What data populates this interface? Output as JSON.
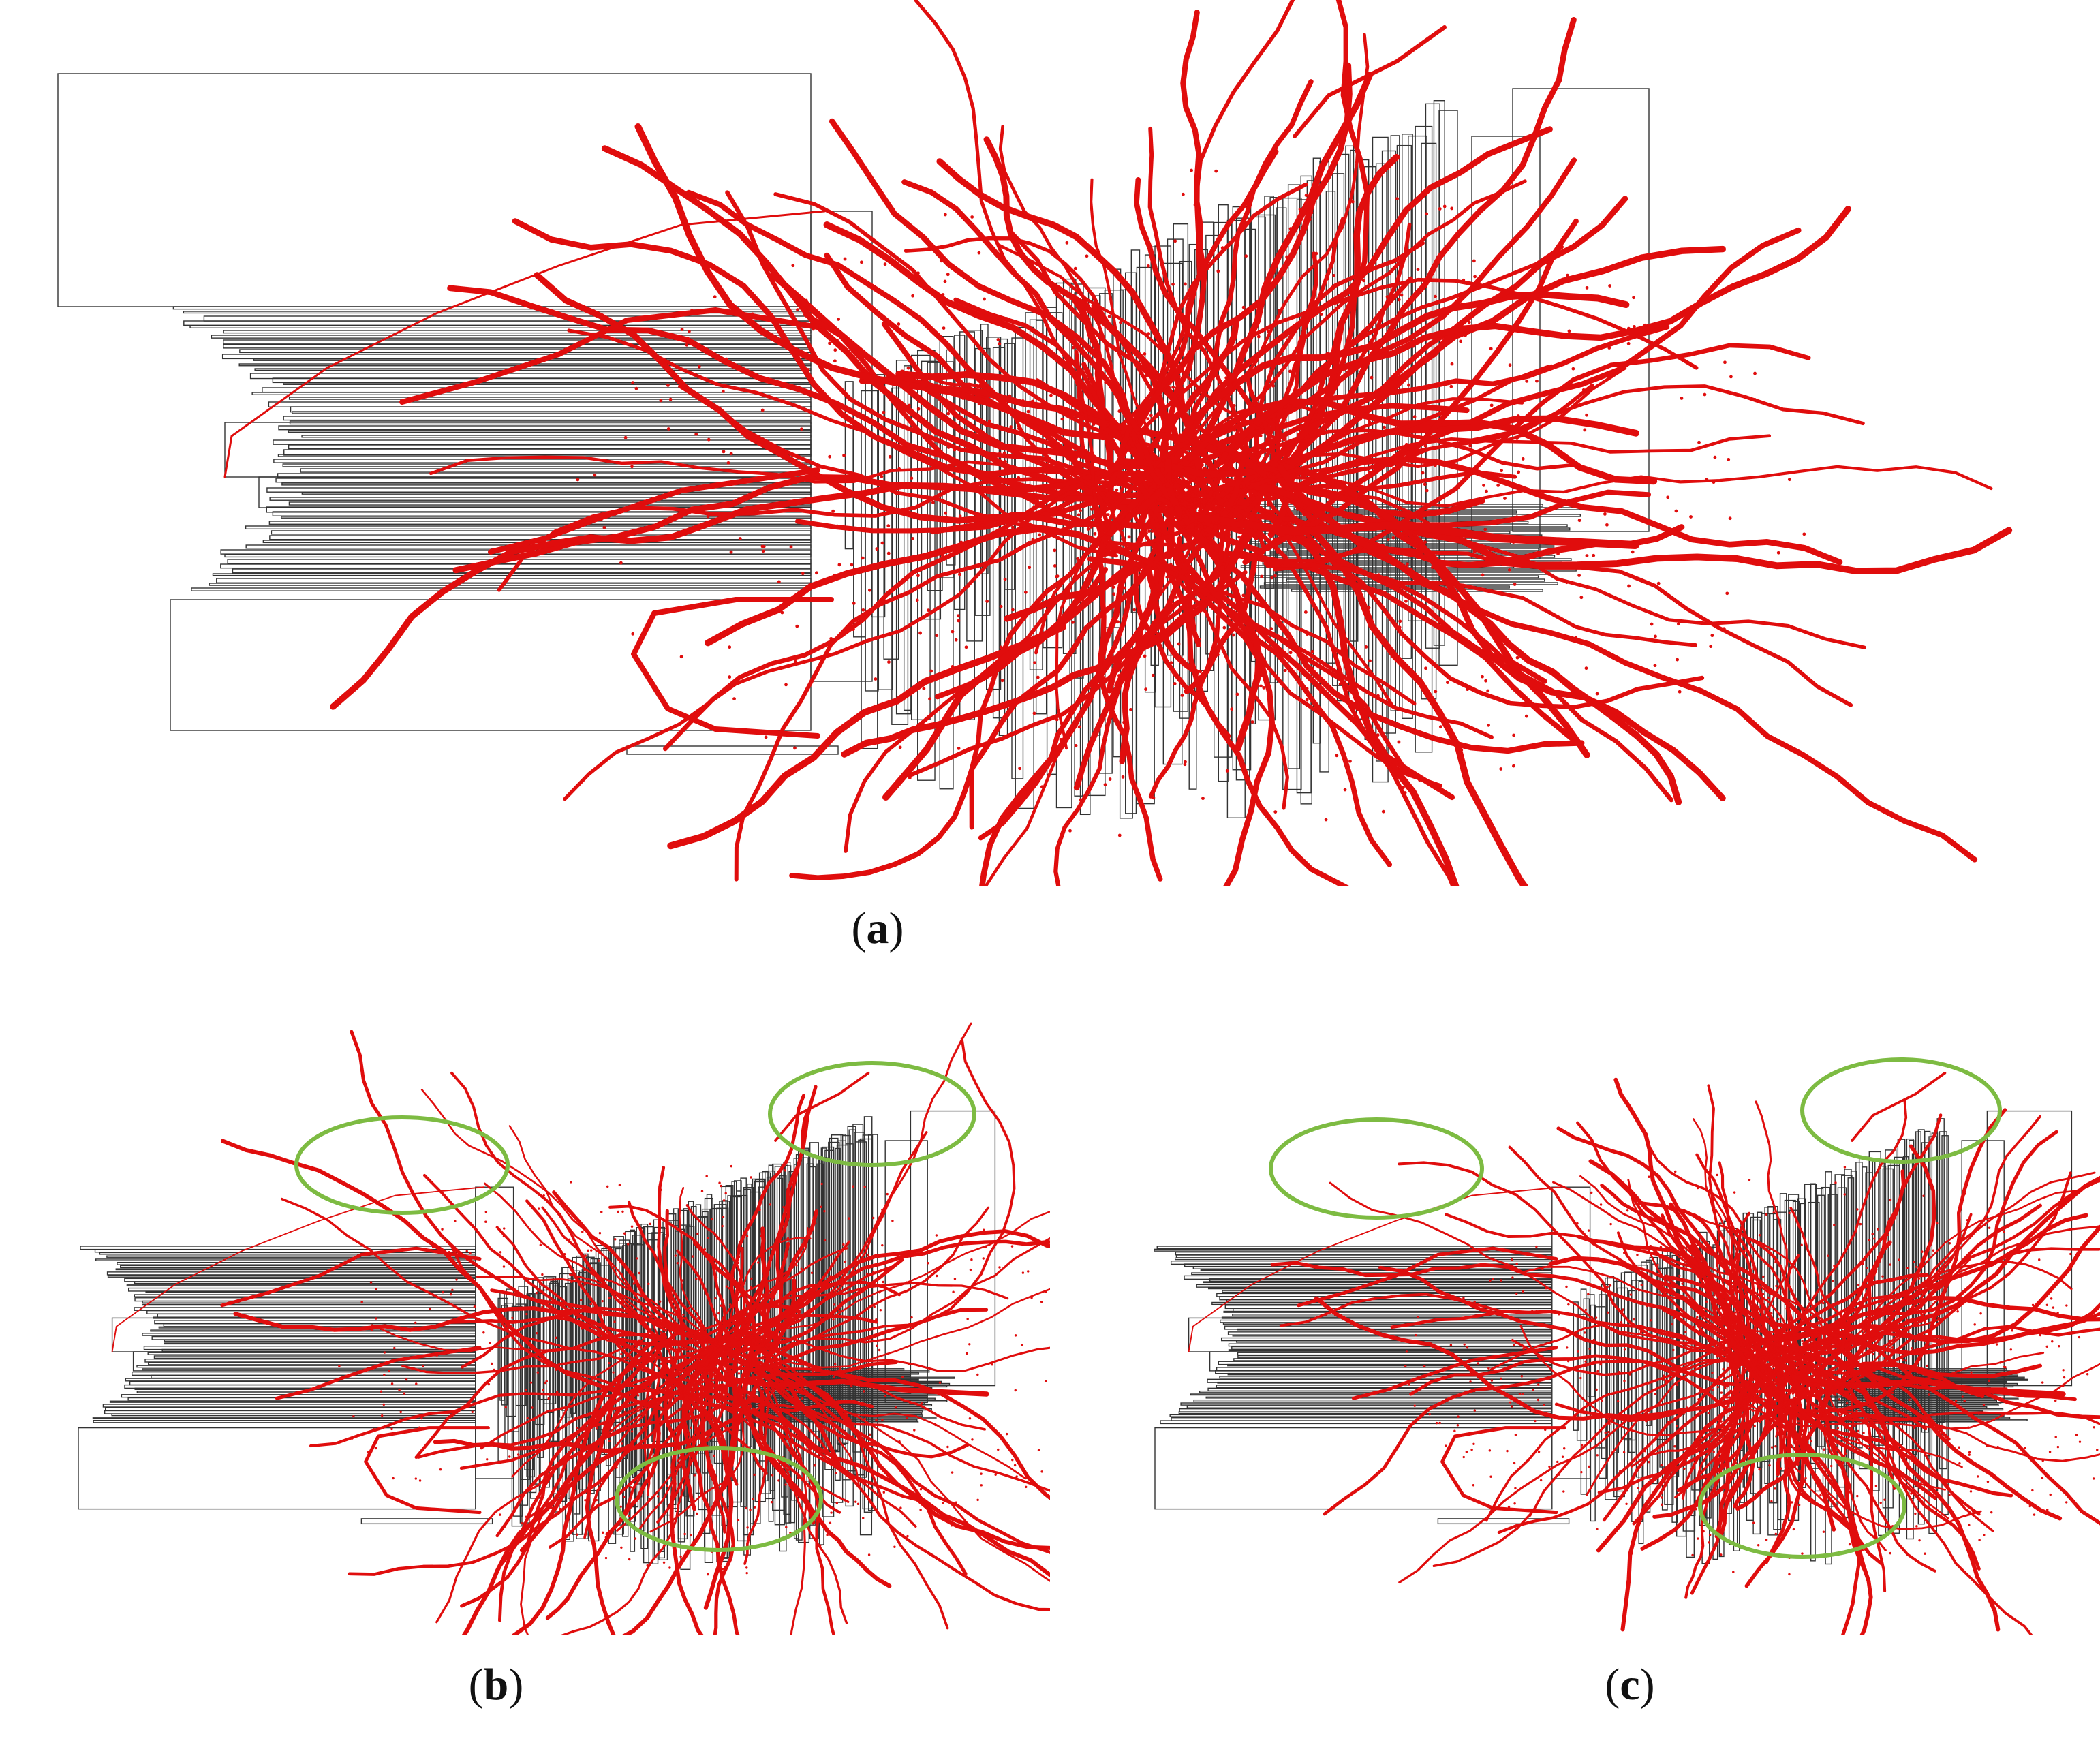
{
  "figure": {
    "colors": {
      "trajectory": "#e00d0d",
      "trajectory_dark": "#9a0000",
      "box_outline": "#333333",
      "highlight_ellipse": "#7dbb42",
      "background": "#ffffff"
    },
    "panels": [
      {
        "id": "a",
        "caption_open": "(",
        "caption_letter": "a",
        "caption_close": ")",
        "highlight_ellipses": 0
      },
      {
        "id": "b",
        "caption_open": "(",
        "caption_letter": "b",
        "caption_close": ")",
        "highlight_ellipses": 3
      },
      {
        "id": "c",
        "caption_open": "(",
        "caption_letter": "c",
        "caption_close": ")",
        "highlight_ellipses": 3
      }
    ]
  }
}
